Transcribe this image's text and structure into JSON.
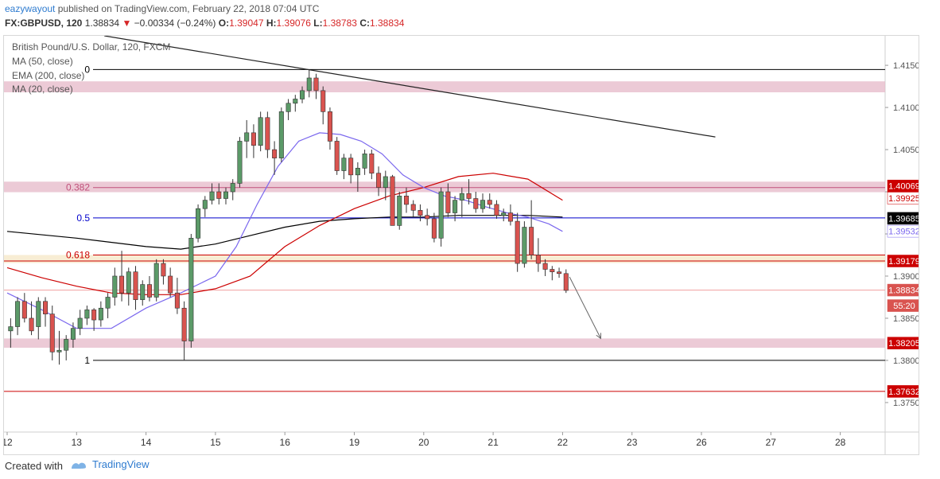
{
  "header": {
    "author": "eazywayout",
    "published_text": "published on TradingView.com, February 22, 2018 07:04 UTC",
    "symbol": "FX:GBPUSD, 120",
    "last": "1.38834",
    "change": "−0.00334 (−0.24%)",
    "open_label": "O:",
    "open": "1.39047",
    "high_label": "H:",
    "high": "1.39076",
    "low_label": "L:",
    "low": "1.38783",
    "close_label": "C:",
    "close": "1.38834"
  },
  "legend": {
    "title": "British Pound/U.S. Dollar, 120, FXCM",
    "ma50": "MA (50, close)",
    "ema200": "EMA (200, close)",
    "ma20": "MA (20, close)"
  },
  "footer": {
    "created_with": "Created with",
    "brand": "TradingView"
  },
  "colors": {
    "up": "#5b9a68",
    "down": "#d9534f",
    "ema200": "#000000",
    "ma50": "#cc0000",
    "ma20": "#7b68ee",
    "fib_half": "#0000cc",
    "zone_pink": "#e6b8c8",
    "zone_cream": "#f6e7c6"
  },
  "chart_data": {
    "type": "candlestick",
    "title": "British Pound/U.S. Dollar, 120, FXCM",
    "ylim": [
      1.3715,
      1.4185
    ],
    "y_ticks": [
      "1.41500",
      "1.41000",
      "1.40500",
      "1.40000",
      "1.39500",
      "1.39000",
      "1.38500",
      "1.38000",
      "1.37500"
    ],
    "x_ticks": [
      {
        "label": "12",
        "x": 0
      },
      {
        "label": "13",
        "x": 10
      },
      {
        "label": "14",
        "x": 20
      },
      {
        "label": "15",
        "x": 30
      },
      {
        "label": "16",
        "x": 40
      },
      {
        "label": "19",
        "x": 50
      },
      {
        "label": "20",
        "x": 60
      },
      {
        "label": "21",
        "x": 70
      },
      {
        "label": "22",
        "x": 80
      },
      {
        "label": "23",
        "x": 90
      },
      {
        "label": "26",
        "x": 100
      },
      {
        "label": "27",
        "x": 110
      },
      {
        "label": "28",
        "x": 120
      }
    ],
    "x_domain": [
      0,
      126
    ],
    "fibonacci": [
      {
        "label": "0",
        "price": 1.4145,
        "color": "#000000"
      },
      {
        "label": "0.382",
        "price": 1.4005,
        "color": "#c0507a"
      },
      {
        "label": "0.5",
        "price": 1.3969,
        "color": "#0000cc"
      },
      {
        "label": "0.618",
        "price": 1.3925,
        "color": "#cc0000"
      },
      {
        "label": "1",
        "price": 1.38,
        "color": "#000000"
      }
    ],
    "zones": [
      {
        "from": 1.4118,
        "to": 1.4131,
        "color": "#e6b8c8"
      },
      {
        "from": 1.39995,
        "to": 1.4012,
        "color": "#e6b8c8"
      },
      {
        "from": 1.39155,
        "to": 1.3925,
        "color": "#f6e7c6"
      },
      {
        "from": 1.3815,
        "to": 1.3826,
        "color": "#e6b8c8"
      }
    ],
    "levels": [
      {
        "price": 1.39179,
        "color": "#cc0000"
      },
      {
        "price": 1.37632,
        "color": "#cc0000"
      },
      {
        "price": 1.38834,
        "color": "#f0a0a0"
      }
    ],
    "trendline": {
      "x1": 14,
      "y1": 1.4185,
      "x2": 102,
      "y2": 1.4065
    },
    "projection": {
      "x1": 81,
      "y1": 1.3899,
      "x2": 85.5,
      "y2": 1.3826
    },
    "price_labels": [
      {
        "text": "1.40069",
        "price": 1.40069,
        "bg": "#cc0000",
        "fg": "#ffffff"
      },
      {
        "text": "1.39925",
        "price": 1.39925,
        "bg": "#ffffff",
        "fg": "#cc0000"
      },
      {
        "text": "1.39685",
        "price": 1.39685,
        "bg": "#000000",
        "fg": "#ffffff"
      },
      {
        "text": "1.39532",
        "price": 1.39532,
        "bg": "#ffffff",
        "fg": "#7b68ee"
      },
      {
        "text": "1.39179",
        "price": 1.39179,
        "bg": "#cc0000",
        "fg": "#ffffff"
      },
      {
        "text": "1.38834",
        "price": 1.38834,
        "bg": "#d9534f",
        "fg": "#ffffff"
      },
      {
        "text": "55:20",
        "price": 1.3865,
        "bg": "#d9534f",
        "fg": "#ffffff"
      },
      {
        "text": "1.38205",
        "price": 1.38205,
        "bg": "#cc0000",
        "fg": "#ffffff"
      },
      {
        "text": "1.37632",
        "price": 1.37632,
        "bg": "#cc0000",
        "fg": "#ffffff"
      }
    ],
    "candles": [
      [
        0.5,
        1.3835,
        1.385,
        1.3815,
        1.384
      ],
      [
        1.5,
        1.384,
        1.3875,
        1.383,
        1.387
      ],
      [
        2.5,
        1.387,
        1.388,
        1.3845,
        1.385
      ],
      [
        3.5,
        1.385,
        1.387,
        1.383,
        1.3835
      ],
      [
        4.5,
        1.384,
        1.3875,
        1.3825,
        1.387
      ],
      [
        5.5,
        1.387,
        1.3875,
        1.384,
        1.3855
      ],
      [
        6.5,
        1.3855,
        1.3865,
        1.38,
        1.381
      ],
      [
        7.5,
        1.381,
        1.3835,
        1.3795,
        1.3812
      ],
      [
        8.5,
        1.3812,
        1.383,
        1.38,
        1.3825
      ],
      [
        9.5,
        1.3825,
        1.3845,
        1.3815,
        1.3838
      ],
      [
        10.5,
        1.3838,
        1.386,
        1.383,
        1.385
      ],
      [
        11.5,
        1.385,
        1.3865,
        1.3842,
        1.386
      ],
      [
        12.5,
        1.386,
        1.3862,
        1.3835,
        1.3848
      ],
      [
        13.5,
        1.3848,
        1.387,
        1.384,
        1.3862
      ],
      [
        14.5,
        1.3862,
        1.388,
        1.385,
        1.3875
      ],
      [
        15.5,
        1.3875,
        1.391,
        1.3865,
        1.39
      ],
      [
        16.5,
        1.39,
        1.393,
        1.387,
        1.388
      ],
      [
        17.5,
        1.388,
        1.391,
        1.3865,
        1.3905
      ],
      [
        18.5,
        1.3905,
        1.3912,
        1.386,
        1.3872
      ],
      [
        19.5,
        1.3872,
        1.3895,
        1.3865,
        1.389
      ],
      [
        20.5,
        1.389,
        1.39,
        1.387,
        1.3875
      ],
      [
        21.5,
        1.3875,
        1.392,
        1.387,
        1.3915
      ],
      [
        22.5,
        1.3915,
        1.392,
        1.389,
        1.39
      ],
      [
        23.5,
        1.39,
        1.391,
        1.3875,
        1.388
      ],
      [
        24.5,
        1.388,
        1.3898,
        1.3855,
        1.3862
      ],
      [
        25.5,
        1.3862,
        1.387,
        1.38,
        1.3823
      ],
      [
        26.5,
        1.3823,
        1.395,
        1.3815,
        1.3945
      ],
      [
        27.5,
        1.3945,
        1.3985,
        1.394,
        1.398
      ],
      [
        28.5,
        1.398,
        1.3995,
        1.397,
        1.399
      ],
      [
        29.5,
        1.399,
        1.401,
        1.3985,
        1.4
      ],
      [
        30.5,
        1.4,
        1.401,
        1.3985,
        1.3992
      ],
      [
        31.5,
        1.3992,
        1.4005,
        1.3985,
        1.4
      ],
      [
        32.5,
        1.4,
        1.4015,
        1.399,
        1.401
      ],
      [
        33.5,
        1.401,
        1.4065,
        1.4005,
        1.406
      ],
      [
        34.5,
        1.406,
        1.4085,
        1.404,
        1.407
      ],
      [
        35.5,
        1.407,
        1.408,
        1.404,
        1.4055
      ],
      [
        36.5,
        1.4055,
        1.4095,
        1.4048,
        1.4088
      ],
      [
        37.5,
        1.4088,
        1.4095,
        1.404,
        1.405
      ],
      [
        38.5,
        1.405,
        1.406,
        1.402,
        1.404
      ],
      [
        39.5,
        1.404,
        1.41,
        1.4035,
        1.4095
      ],
      [
        40.5,
        1.4095,
        1.411,
        1.4085,
        1.4105
      ],
      [
        41.5,
        1.4105,
        1.4115,
        1.4095,
        1.411
      ],
      [
        42.5,
        1.411,
        1.4125,
        1.4105,
        1.412
      ],
      [
        43.5,
        1.412,
        1.4145,
        1.4112,
        1.4135
      ],
      [
        44.5,
        1.4135,
        1.414,
        1.411,
        1.412
      ],
      [
        45.5,
        1.412,
        1.4125,
        1.408,
        1.4095
      ],
      [
        46.5,
        1.4095,
        1.41,
        1.405,
        1.406
      ],
      [
        47.5,
        1.406,
        1.4065,
        1.402,
        1.4025
      ],
      [
        48.5,
        1.4025,
        1.4045,
        1.4015,
        1.404
      ],
      [
        49.5,
        1.404,
        1.4045,
        1.401,
        1.402
      ],
      [
        50.5,
        1.402,
        1.4035,
        1.4,
        1.4028
      ],
      [
        51.5,
        1.4028,
        1.405,
        1.402,
        1.4045
      ],
      [
        52.5,
        1.4045,
        1.405,
        1.4015,
        1.4022
      ],
      [
        53.5,
        1.4022,
        1.403,
        1.3995,
        1.4005
      ],
      [
        54.5,
        1.4005,
        1.4025,
        1.399,
        1.4018
      ],
      [
        55.5,
        1.4018,
        1.402,
        1.396,
        1.396
      ],
      [
        56.5,
        1.396,
        1.4,
        1.3955,
        1.3995
      ],
      [
        57.5,
        1.3995,
        1.4005,
        1.3975,
        1.3985
      ],
      [
        58.5,
        1.3985,
        1.399,
        1.397,
        1.3978
      ],
      [
        59.5,
        1.3978,
        1.3985,
        1.3965,
        1.3972
      ],
      [
        60.5,
        1.3972,
        1.398,
        1.396,
        1.3968
      ],
      [
        61.5,
        1.3968,
        1.3975,
        1.394,
        1.3945
      ],
      [
        62.5,
        1.3945,
        1.4005,
        1.3935,
        1.4
      ],
      [
        63.5,
        1.4,
        1.401,
        1.397,
        1.3975
      ],
      [
        64.5,
        1.3975,
        1.3995,
        1.3965,
        1.399
      ],
      [
        65.5,
        1.399,
        1.4005,
        1.397,
        1.3998
      ],
      [
        66.5,
        1.3998,
        1.4015,
        1.3985,
        1.3992
      ],
      [
        67.5,
        1.3992,
        1.4,
        1.3975,
        1.398
      ],
      [
        68.5,
        1.398,
        1.3998,
        1.3975,
        1.399
      ],
      [
        69.5,
        1.399,
        1.3998,
        1.398,
        1.3985
      ],
      [
        70.5,
        1.3985,
        1.399,
        1.3968,
        1.3972
      ],
      [
        71.5,
        1.3972,
        1.398,
        1.3965,
        1.3975
      ],
      [
        72.5,
        1.3975,
        1.3985,
        1.396,
        1.3965
      ],
      [
        73.5,
        1.3965,
        1.3975,
        1.3905,
        1.3915
      ],
      [
        74.5,
        1.3915,
        1.3965,
        1.391,
        1.3958
      ],
      [
        75.5,
        1.3958,
        1.399,
        1.392,
        1.3925
      ],
      [
        76.5,
        1.3925,
        1.3945,
        1.3905,
        1.3915
      ],
      [
        77.5,
        1.3915,
        1.392,
        1.39,
        1.3908
      ],
      [
        78.5,
        1.3908,
        1.3912,
        1.3895,
        1.3905
      ],
      [
        79.5,
        1.3905,
        1.391,
        1.3898,
        1.3903
      ],
      [
        80.5,
        1.3903,
        1.3908,
        1.388,
        1.3883
      ]
    ],
    "series": [
      {
        "name": "EMA (200, close)",
        "color": "#000000",
        "x": [
          0,
          10,
          20,
          25,
          30,
          35,
          40,
          45,
          50,
          55,
          60,
          65,
          70,
          75,
          80
        ],
        "y": [
          1.3953,
          1.3945,
          1.3935,
          1.3932,
          1.3938,
          1.3948,
          1.3958,
          1.3965,
          1.3968,
          1.397,
          1.397,
          1.3972,
          1.3972,
          1.3972,
          1.397
        ]
      },
      {
        "name": "MA (50, close)",
        "color": "#cc0000",
        "x": [
          0,
          5,
          10,
          15,
          20,
          25,
          30,
          35,
          40,
          45,
          50,
          55,
          60,
          65,
          70,
          75,
          80
        ],
        "y": [
          1.391,
          1.3898,
          1.3888,
          1.388,
          1.3878,
          1.3878,
          1.3885,
          1.39,
          1.3935,
          1.396,
          1.398,
          1.3995,
          1.4005,
          1.4018,
          1.4022,
          1.4015,
          1.399
        ]
      },
      {
        "name": "MA (20, close)",
        "color": "#7b68ee",
        "x": [
          0,
          5,
          10,
          15,
          20,
          25,
          30,
          33,
          36,
          39,
          42,
          45,
          48,
          51,
          54,
          57,
          60,
          63,
          66,
          69,
          72,
          75,
          78,
          80
        ],
        "y": [
          1.388,
          1.386,
          1.3838,
          1.3838,
          1.3862,
          1.388,
          1.39,
          1.3935,
          1.3985,
          1.403,
          1.406,
          1.407,
          1.4068,
          1.406,
          1.4045,
          1.402,
          1.4005,
          1.3995,
          1.399,
          1.3982,
          1.3975,
          1.397,
          1.3962,
          1.3953
        ]
      }
    ]
  }
}
